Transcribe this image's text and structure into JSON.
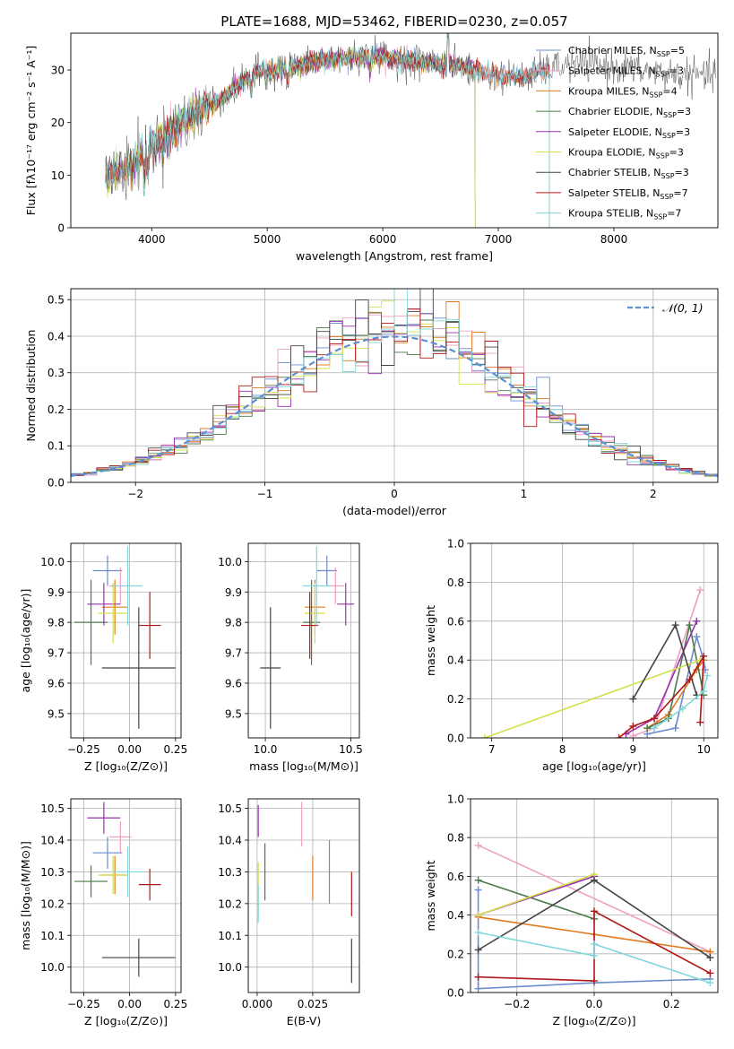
{
  "figure": {
    "title": "PLATE=1688, MJD=53462, FIBERID=0230, z=0.057"
  },
  "chart_data": [
    {
      "id": "spectrum",
      "type": "line",
      "title": "PLATE=1688, MJD=53462, FIBERID=0230, z=0.057",
      "xlabel": "wavelength [Angstrom, rest frame]",
      "ylabel": "Flux [fλ10⁻¹⁷ erg cm⁻² s⁻¹ A⁻¹]",
      "xlim": [
        3300,
        8900
      ],
      "ylim": [
        0,
        37
      ],
      "xticks": [
        4000,
        5000,
        6000,
        7000,
        8000
      ],
      "yticks": [
        0,
        10,
        20,
        30
      ],
      "grid": false,
      "legend_position": "top-right",
      "continuum_points": [
        [
          3600,
          9.5
        ],
        [
          3800,
          11.5
        ],
        [
          4000,
          15.5
        ],
        [
          4300,
          20.5
        ],
        [
          4600,
          24.5
        ],
        [
          4900,
          29.5
        ],
        [
          5200,
          30.5
        ],
        [
          5500,
          32
        ],
        [
          5800,
          32.5
        ],
        [
          6000,
          32.5
        ],
        [
          6300,
          31.5
        ],
        [
          6600,
          31
        ],
        [
          6800,
          30
        ],
        [
          7000,
          29
        ],
        [
          7200,
          28.5
        ],
        [
          7400,
          30
        ],
        [
          7600,
          31
        ],
        [
          7800,
          31
        ],
        [
          8000,
          30.5
        ],
        [
          8200,
          30
        ],
        [
          8400,
          29.5
        ],
        [
          8600,
          29
        ],
        [
          8800,
          29
        ]
      ],
      "series": [
        {
          "name": "Chabrier MILES, N",
          "sub": "SSP",
          "suffix": "=5",
          "color": "#6b8ccc",
          "xmax": 7440
        },
        {
          "name": "Salpeter MILES, N",
          "sub": "SSP",
          "suffix": "=3",
          "color": "#f0a0c0",
          "xmax": 7440
        },
        {
          "name": "Kroupa MILES, N",
          "sub": "SSP",
          "suffix": "=4",
          "color": "#e07b20",
          "xmax": 7440
        },
        {
          "name": "Chabrier ELODIE, N",
          "sub": "SSP",
          "suffix": "=3",
          "color": "#4a7a4a",
          "xmax": 6800
        },
        {
          "name": "Salpeter ELODIE, N",
          "sub": "SSP",
          "suffix": "=3",
          "color": "#9a30b0",
          "xmax": 6800
        },
        {
          "name": "Kroupa ELODIE, N",
          "sub": "SSP",
          "suffix": "=3",
          "color": "#d4e04a",
          "xmax": 6800
        },
        {
          "name": "Chabrier STELIB, N",
          "sub": "SSP",
          "suffix": "=3",
          "color": "#444444",
          "xmax": 8880
        },
        {
          "name": "Salpeter STELIB, N",
          "sub": "SSP",
          "suffix": "=7",
          "color": "#b01818",
          "xmax": 7440
        },
        {
          "name": "Kroupa STELIB, N",
          "sub": "SSP",
          "suffix": "=7",
          "color": "#80d8dc",
          "xmax": 7440
        }
      ]
    },
    {
      "id": "residuals",
      "type": "line",
      "xlabel": "(data-model)/error",
      "ylabel": "Normed distribution",
      "xlim": [
        -2.5,
        2.5
      ],
      "ylim": [
        0,
        0.53
      ],
      "xticks": [
        -2,
        -1,
        0,
        1,
        2
      ],
      "yticks": [
        0.0,
        0.1,
        0.2,
        0.3,
        0.4,
        0.5
      ],
      "grid": true,
      "legend_position": "top-right",
      "reference_curve": {
        "name": "N(0,1)",
        "label": "𝒩(0, 1)",
        "color": "#5b8fd6",
        "dash": true
      },
      "histogram_bin_width": 0.1,
      "histogram_note": "step histograms per model, approximately following N(0,1)"
    },
    {
      "id": "age_vs_Z",
      "type": "scatter",
      "xlabel": "Z [log₁₀(Z/Z⊙)]",
      "ylabel": "age  [log₁₀(age/yr)]",
      "xlim": [
        -0.32,
        0.28
      ],
      "ylim": [
        9.42,
        10.06
      ],
      "xticks": [
        -0.25,
        0.0,
        0.25
      ],
      "yticks": [
        9.5,
        9.6,
        9.7,
        9.8,
        9.9,
        10.0
      ],
      "grid": true,
      "points": [
        {
          "color": "#6b8ccc",
          "x": -0.12,
          "xerr": 0.08,
          "y": 9.97,
          "yerr": 0.05
        },
        {
          "color": "#f0a0c0",
          "x": -0.05,
          "xerr": 0.06,
          "y": 9.92,
          "yerr": 0.06
        },
        {
          "color": "#e07b20",
          "x": -0.08,
          "xerr": 0.07,
          "y": 9.85,
          "yerr": 0.09
        },
        {
          "color": "#4a7a4a",
          "x": -0.21,
          "xerr": 0.09,
          "y": 9.8,
          "yerr": 0.14
        },
        {
          "color": "#9a30b0",
          "x": -0.14,
          "xerr": 0.09,
          "y": 9.86,
          "yerr": 0.07
        },
        {
          "color": "#d4e04a",
          "x": -0.09,
          "xerr": 0.08,
          "y": 9.83,
          "yerr": 0.1
        },
        {
          "color": "#444444",
          "x": 0.05,
          "xerr": 0.2,
          "y": 9.65,
          "yerr": 0.2
        },
        {
          "color": "#b01818",
          "x": 0.11,
          "xerr": 0.06,
          "y": 9.79,
          "yerr": 0.11
        },
        {
          "color": "#80d8dc",
          "x": -0.01,
          "xerr": 0.08,
          "y": 9.92,
          "yerr": 0.13
        }
      ]
    },
    {
      "id": "age_vs_mass",
      "type": "scatter",
      "xlabel": "mass [log₁₀(M/M⊙)]",
      "ylabel": "",
      "xlim": [
        9.9,
        10.55
      ],
      "ylim": [
        9.42,
        10.06
      ],
      "xticks": [
        10.0,
        10.5
      ],
      "yticks": [
        9.5,
        9.6,
        9.7,
        9.8,
        9.9,
        10.0
      ],
      "grid": true,
      "points": [
        {
          "color": "#6b8ccc",
          "x": 10.36,
          "xerr": 0.06,
          "y": 9.97,
          "yerr": 0.05
        },
        {
          "color": "#f0a0c0",
          "x": 10.41,
          "xerr": 0.05,
          "y": 9.92,
          "yerr": 0.06
        },
        {
          "color": "#e07b20",
          "x": 10.29,
          "xerr": 0.06,
          "y": 9.85,
          "yerr": 0.09
        },
        {
          "color": "#4a7a4a",
          "x": 10.27,
          "xerr": 0.05,
          "y": 9.8,
          "yerr": 0.14
        },
        {
          "color": "#9a30b0",
          "x": 10.47,
          "xerr": 0.05,
          "y": 9.86,
          "yerr": 0.07
        },
        {
          "color": "#d4e04a",
          "x": 10.29,
          "xerr": 0.06,
          "y": 9.83,
          "yerr": 0.1
        },
        {
          "color": "#444444",
          "x": 10.03,
          "xerr": 0.06,
          "y": 9.65,
          "yerr": 0.2
        },
        {
          "color": "#b01818",
          "x": 10.26,
          "xerr": 0.05,
          "y": 9.79,
          "yerr": 0.11
        },
        {
          "color": "#80d8dc",
          "x": 10.3,
          "xerr": 0.08,
          "y": 9.92,
          "yerr": 0.13
        }
      ]
    },
    {
      "id": "weight_vs_age",
      "type": "line",
      "xlabel": "age  [log₁₀(age/yr)]",
      "ylabel": "mass weight",
      "xlim": [
        6.7,
        10.2
      ],
      "ylim": [
        0,
        1.0
      ],
      "xticks": [
        7,
        8,
        9,
        10
      ],
      "yticks": [
        0.0,
        0.2,
        0.4,
        0.6,
        0.8,
        1.0
      ],
      "grid": true,
      "series": [
        {
          "color": "#6b8ccc",
          "points": [
            [
              9.2,
              0.02
            ],
            [
              9.6,
              0.05
            ],
            [
              9.9,
              0.52
            ],
            [
              10.0,
              0.4
            ],
            [
              10.02,
              0.35
            ]
          ]
        },
        {
          "color": "#f0a0c0",
          "points": [
            [
              9.0,
              0.01
            ],
            [
              9.3,
              0.05
            ],
            [
              9.95,
              0.76
            ]
          ]
        },
        {
          "color": "#e07b20",
          "points": [
            [
              9.2,
              0.05
            ],
            [
              9.5,
              0.12
            ],
            [
              9.9,
              0.35
            ],
            [
              10.0,
              0.4
            ]
          ]
        },
        {
          "color": "#4a7a4a",
          "points": [
            [
              9.2,
              0.05
            ],
            [
              9.5,
              0.1
            ],
            [
              9.8,
              0.58
            ],
            [
              10.0,
              0.22
            ]
          ]
        },
        {
          "color": "#9a30b0",
          "points": [
            [
              8.9,
              0.02
            ],
            [
              9.3,
              0.1
            ],
            [
              9.9,
              0.6
            ]
          ]
        },
        {
          "color": "#d4e04a",
          "points": [
            [
              6.9,
              0.0
            ],
            [
              9.95,
              0.4
            ]
          ]
        },
        {
          "color": "#444444",
          "points": [
            [
              9.0,
              0.2
            ],
            [
              9.6,
              0.58
            ],
            [
              9.9,
              0.22
            ]
          ]
        },
        {
          "color": "#b01818",
          "points": [
            [
              8.8,
              0.0
            ],
            [
              9.0,
              0.06
            ],
            [
              9.3,
              0.1
            ],
            [
              9.8,
              0.3
            ],
            [
              10.0,
              0.42
            ],
            [
              9.95,
              0.08
            ]
          ]
        },
        {
          "color": "#80d8dc",
          "points": [
            [
              9.3,
              0.05
            ],
            [
              9.7,
              0.15
            ],
            [
              10.0,
              0.24
            ],
            [
              10.05,
              0.32
            ]
          ]
        }
      ]
    },
    {
      "id": "mass_vs_Z",
      "type": "scatter",
      "xlabel": "Z [log₁₀(Z/Z⊙)]",
      "ylabel": "mass [log₁₀(M/M⊙)]",
      "xlim": [
        -0.32,
        0.28
      ],
      "ylim": [
        9.92,
        10.53
      ],
      "xticks": [
        -0.25,
        0.0,
        0.25
      ],
      "yticks": [
        10.0,
        10.1,
        10.2,
        10.3,
        10.4,
        10.5
      ],
      "grid": true,
      "points": [
        {
          "color": "#6b8ccc",
          "x": -0.12,
          "xerr": 0.08,
          "y": 10.36,
          "yerr": 0.05
        },
        {
          "color": "#f0a0c0",
          "x": -0.05,
          "xerr": 0.06,
          "y": 10.41,
          "yerr": 0.05
        },
        {
          "color": "#e07b20",
          "x": -0.08,
          "xerr": 0.07,
          "y": 10.29,
          "yerr": 0.06
        },
        {
          "color": "#4a7a4a",
          "x": -0.21,
          "xerr": 0.09,
          "y": 10.27,
          "yerr": 0.05
        },
        {
          "color": "#9a30b0",
          "x": -0.14,
          "xerr": 0.09,
          "y": 10.47,
          "yerr": 0.05
        },
        {
          "color": "#d4e04a",
          "x": -0.09,
          "xerr": 0.08,
          "y": 10.29,
          "yerr": 0.06
        },
        {
          "color": "#444444",
          "x": 0.05,
          "xerr": 0.2,
          "y": 10.03,
          "yerr": 0.06
        },
        {
          "color": "#b01818",
          "x": 0.11,
          "xerr": 0.06,
          "y": 10.26,
          "yerr": 0.05
        },
        {
          "color": "#80d8dc",
          "x": -0.01,
          "xerr": 0.08,
          "y": 10.3,
          "yerr": 0.08
        }
      ]
    },
    {
      "id": "mass_vs_EBV",
      "type": "scatter",
      "xlabel": "E(B-V)",
      "ylabel": "",
      "xlim": [
        -0.004,
        0.046
      ],
      "ylim": [
        9.92,
        10.53
      ],
      "xticks": [
        0.0,
        0.025
      ],
      "yticks": [
        10.0,
        10.1,
        10.2,
        10.3,
        10.4,
        10.5
      ],
      "grid": true,
      "points": [
        {
          "color": "#6b8ccc",
          "x": 0.0325,
          "xerr": 0,
          "y": 10.3,
          "yerr": 0.1
        },
        {
          "color": "#f0a0c0",
          "x": 0.02,
          "xerr": 0,
          "y": 10.45,
          "yerr": 0.07
        },
        {
          "color": "#e07b20",
          "x": 0.025,
          "xerr": 0,
          "y": 10.28,
          "yerr": 0.07
        },
        {
          "color": "#4a7a4a",
          "x": 0.0035,
          "xerr": 0,
          "y": 10.3,
          "yerr": 0.09
        },
        {
          "color": "#9a30b0",
          "x": 0.0005,
          "xerr": 0,
          "y": 10.46,
          "yerr": 0.05
        },
        {
          "color": "#d4e04a",
          "x": 0.0005,
          "xerr": 0,
          "y": 10.25,
          "yerr": 0.08
        },
        {
          "color": "#444444",
          "x": 0.0425,
          "xerr": 0,
          "y": 10.02,
          "yerr": 0.07
        },
        {
          "color": "#b01818",
          "x": 0.0425,
          "xerr": 0,
          "y": 10.23,
          "yerr": 0.07
        },
        {
          "color": "#80d8dc",
          "x": 0.0005,
          "xerr": 0,
          "y": 10.2,
          "yerr": 0.06
        }
      ]
    },
    {
      "id": "weight_vs_Z",
      "type": "line",
      "xlabel": "Z [log₁₀(Z/Z⊙)]",
      "ylabel": "mass weight",
      "xlim": [
        -0.32,
        0.32
      ],
      "ylim": [
        0,
        1.0
      ],
      "xticks": [
        -0.2,
        0.0,
        0.2
      ],
      "yticks": [
        0.0,
        0.2,
        0.4,
        0.6,
        0.8,
        1.0
      ],
      "grid": true,
      "series": [
        {
          "color": "#6b8ccc",
          "points": [
            [
              -0.3,
              0.53
            ],
            [
              -0.3,
              0.4
            ],
            [
              -0.3,
              0.02
            ],
            [
              0.0,
              0.05
            ],
            [
              0.3,
              0.07
            ]
          ]
        },
        {
          "color": "#f0a0c0",
          "points": [
            [
              -0.3,
              0.76
            ],
            [
              0.3,
              0.21
            ]
          ]
        },
        {
          "color": "#e07b20",
          "points": [
            [
              -0.3,
              0.39
            ],
            [
              0.0,
              0.3
            ],
            [
              0.3,
              0.21
            ]
          ]
        },
        {
          "color": "#4a7a4a",
          "points": [
            [
              -0.3,
              0.58
            ],
            [
              0.0,
              0.38
            ]
          ]
        },
        {
          "color": "#9a30b0",
          "points": [
            [
              -0.3,
              0.4
            ],
            [
              0.0,
              0.6
            ]
          ]
        },
        {
          "color": "#d4e04a",
          "points": [
            [
              -0.3,
              0.4
            ],
            [
              0.0,
              0.61
            ]
          ]
        },
        {
          "color": "#444444",
          "points": [
            [
              -0.3,
              0.22
            ],
            [
              0.0,
              0.58
            ],
            [
              0.3,
              0.18
            ]
          ]
        },
        {
          "color": "#b01818",
          "points": [
            [
              -0.3,
              0.08
            ],
            [
              0.0,
              0.06
            ],
            [
              0.0,
              0.42
            ],
            [
              0.3,
              0.1
            ]
          ]
        },
        {
          "color": "#80d8dc",
          "points": [
            [
              -0.3,
              0.31
            ],
            [
              0.0,
              0.19
            ],
            [
              0.0,
              0.25
            ],
            [
              0.3,
              0.05
            ]
          ]
        }
      ]
    }
  ]
}
